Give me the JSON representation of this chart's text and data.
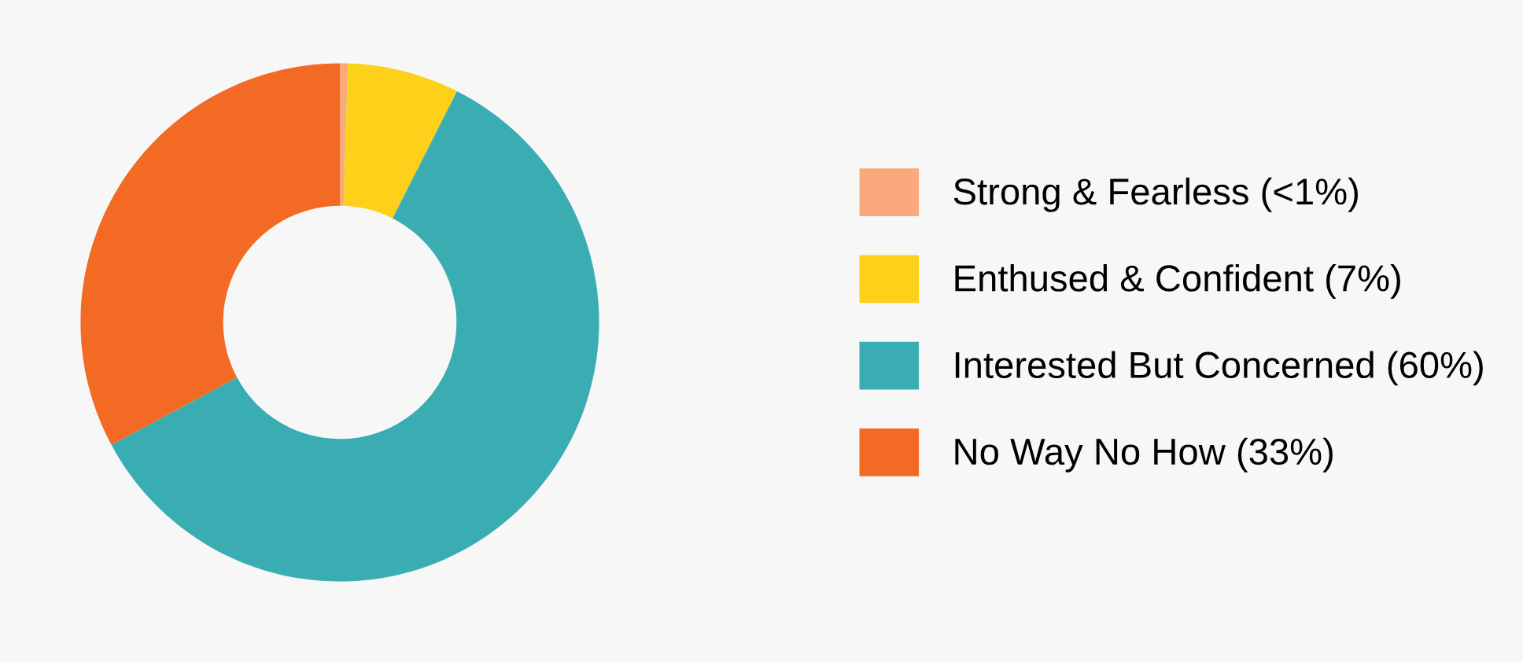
{
  "chart_data": {
    "type": "donut",
    "categories": [
      "Strong & Fearless (<1%)",
      "Enthused & Confident (7%)",
      "Interested But Concerned (60%)",
      "No Way No How (33%)"
    ],
    "values": [
      0.5,
      7,
      60,
      33
    ],
    "colors": [
      "#f9a97b",
      "#fdd01a",
      "#3aadb3",
      "#f26a24"
    ],
    "legend": "right"
  }
}
